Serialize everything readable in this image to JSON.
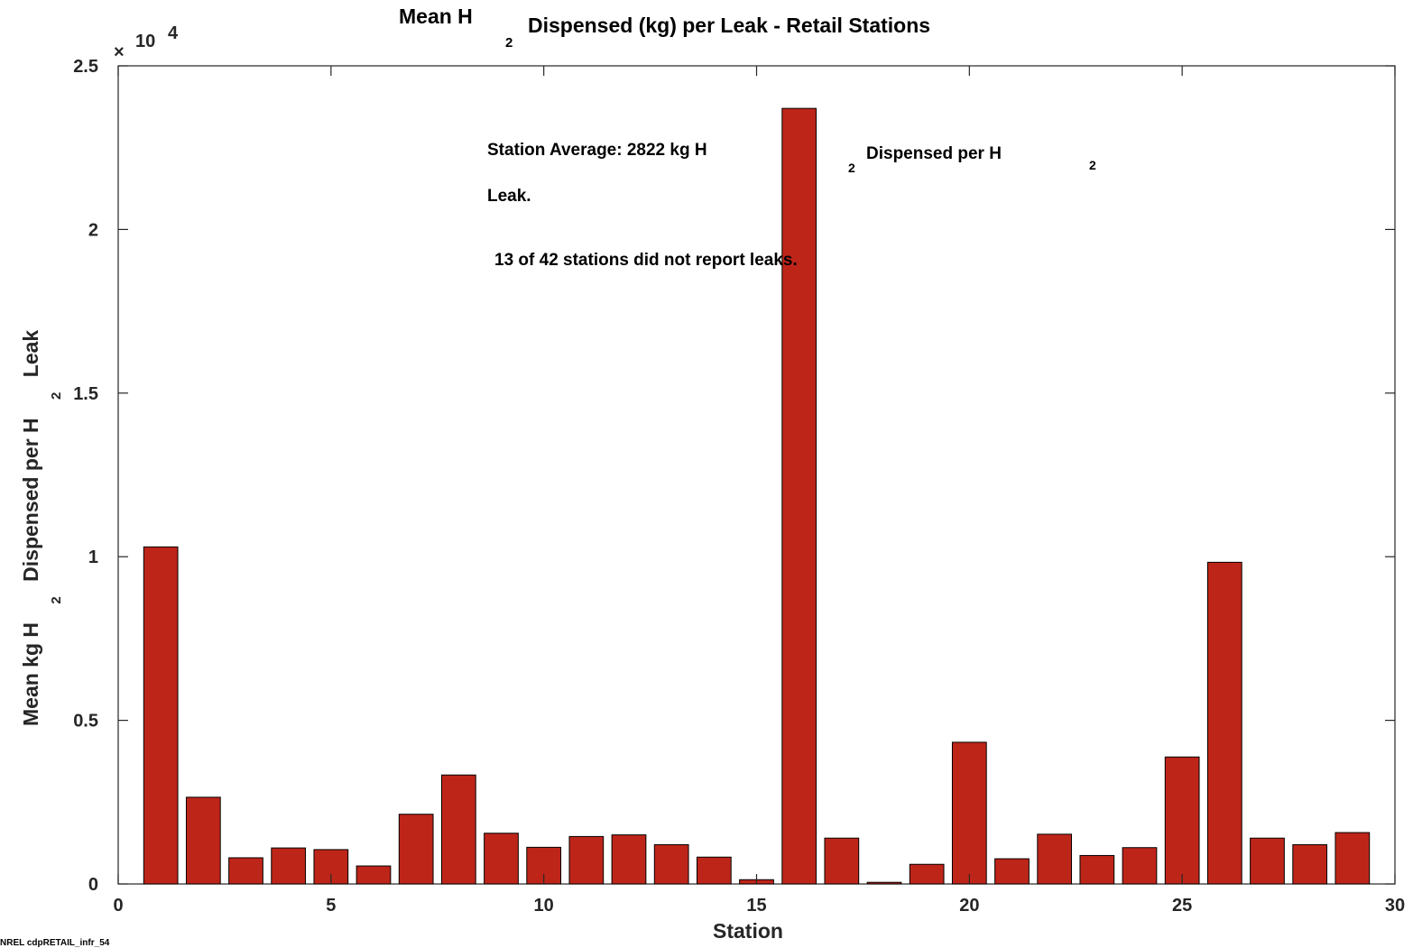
{
  "chart_data": {
    "type": "bar",
    "title": {
      "prefix": "Mean H",
      "subscript": "2",
      "suffix": "Dispensed (kg) per Leak - Retail Stations"
    },
    "xlabel": "Station",
    "ylabel": {
      "part1": "Mean kg H",
      "sub1": "2",
      "part2": "Dispensed per H",
      "sub2": "2",
      "part3": "Leak"
    },
    "y_multiplier": {
      "times": "×",
      "base": "10",
      "exponent": "4"
    },
    "xlim": [
      0,
      30
    ],
    "ylim": [
      0,
      25000
    ],
    "x_ticks": [
      0,
      5,
      10,
      15,
      20,
      25,
      30
    ],
    "y_ticks": [
      {
        "value": 0,
        "label": "0"
      },
      {
        "value": 5000,
        "label": "0.5"
      },
      {
        "value": 10000,
        "label": "1"
      },
      {
        "value": 15000,
        "label": "1.5"
      },
      {
        "value": 20000,
        "label": "2"
      },
      {
        "value": 25000,
        "label": "2.5"
      }
    ],
    "bar_color": "#be2519",
    "x": [
      1,
      2,
      3,
      4,
      5,
      6,
      7,
      8,
      9,
      10,
      11,
      12,
      13,
      14,
      15,
      16,
      17,
      18,
      19,
      20,
      21,
      22,
      23,
      24,
      25,
      26,
      27,
      28,
      29
    ],
    "values": [
      10300,
      2650,
      800,
      1100,
      1050,
      550,
      2130,
      3330,
      1550,
      1120,
      1450,
      1500,
      1200,
      820,
      130,
      23700,
      1400,
      50,
      600,
      4330,
      770,
      1520,
      870,
      1110,
      3880,
      9830,
      1400,
      1200,
      1570
    ],
    "annotations": {
      "line1_text": "Station Average: 2822 kg H",
      "line1_sub": "2",
      "line1_mid": "Dispensed per H",
      "line1_sub2": "2",
      "line2": "Leak.",
      "line3": "13 of 42 stations did not report leaks."
    },
    "grid": false
  },
  "footer_label": "NREL cdpRETAIL_infr_54"
}
